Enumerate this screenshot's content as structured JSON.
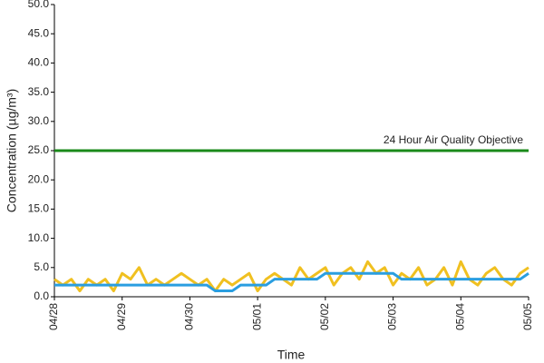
{
  "chart_data": {
    "type": "line",
    "ylabel": "Concentration (µg/m³)",
    "xlabel": "Time",
    "xlim": [
      0,
      168
    ],
    "xticks": [
      {
        "value": 0,
        "label": "04/28"
      },
      {
        "value": 24,
        "label": "04/29"
      },
      {
        "value": 48,
        "label": "04/30"
      },
      {
        "value": 72,
        "label": "05/01"
      },
      {
        "value": 96,
        "label": "05/02"
      },
      {
        "value": 120,
        "label": "05/03"
      },
      {
        "value": 144,
        "label": "05/04"
      },
      {
        "value": 168,
        "label": "05/05"
      }
    ],
    "ylim": [
      0,
      50
    ],
    "yticks": [
      {
        "value": 0,
        "label": "0.0"
      },
      {
        "value": 5,
        "label": "5.0"
      },
      {
        "value": 10,
        "label": "10.0"
      },
      {
        "value": 15,
        "label": "15.0"
      },
      {
        "value": 20,
        "label": "20.0"
      },
      {
        "value": 25,
        "label": "25.0"
      },
      {
        "value": 30,
        "label": "30.0"
      },
      {
        "value": 35,
        "label": "35.0"
      },
      {
        "value": 40,
        "label": "40.0"
      },
      {
        "value": 45,
        "label": "45.0"
      },
      {
        "value": 50,
        "label": "50.0"
      }
    ],
    "x": [
      0,
      3,
      6,
      9,
      12,
      15,
      18,
      21,
      24,
      27,
      30,
      33,
      36,
      39,
      42,
      45,
      48,
      51,
      54,
      57,
      60,
      63,
      66,
      69,
      72,
      75,
      78,
      81,
      84,
      87,
      90,
      93,
      96,
      99,
      102,
      105,
      108,
      111,
      114,
      117,
      120,
      123,
      126,
      129,
      132,
      135,
      138,
      141,
      144,
      147,
      150,
      153,
      156,
      159,
      162,
      165,
      168
    ],
    "series": [
      {
        "color": "#f0c020",
        "values": [
          3,
          2,
          3,
          1,
          3,
          2,
          3,
          1,
          4,
          3,
          5,
          2,
          3,
          2,
          3,
          4,
          3,
          2,
          3,
          1,
          3,
          2,
          3,
          4,
          1,
          3,
          4,
          3,
          2,
          5,
          3,
          4,
          5,
          2,
          4,
          5,
          3,
          6,
          4,
          5,
          2,
          4,
          3,
          5,
          2,
          3,
          5,
          2,
          6,
          3,
          2,
          4,
          5,
          3,
          2,
          4,
          5
        ]
      },
      {
        "color": "#2a9ee0",
        "values": [
          2,
          2,
          2,
          2,
          2,
          2,
          2,
          2,
          2,
          2,
          2,
          2,
          2,
          2,
          2,
          2,
          2,
          2,
          2,
          1,
          1,
          1,
          2,
          2,
          2,
          2,
          3,
          3,
          3,
          3,
          3,
          3,
          4,
          4,
          4,
          4,
          4,
          4,
          4,
          4,
          4,
          3,
          3,
          3,
          3,
          3,
          3,
          3,
          3,
          3,
          3,
          3,
          3,
          3,
          3,
          3,
          4
        ]
      }
    ],
    "objective": {
      "label": "24 Hour Air Quality Objective",
      "value": 25,
      "color": "#1a8a1a"
    }
  }
}
